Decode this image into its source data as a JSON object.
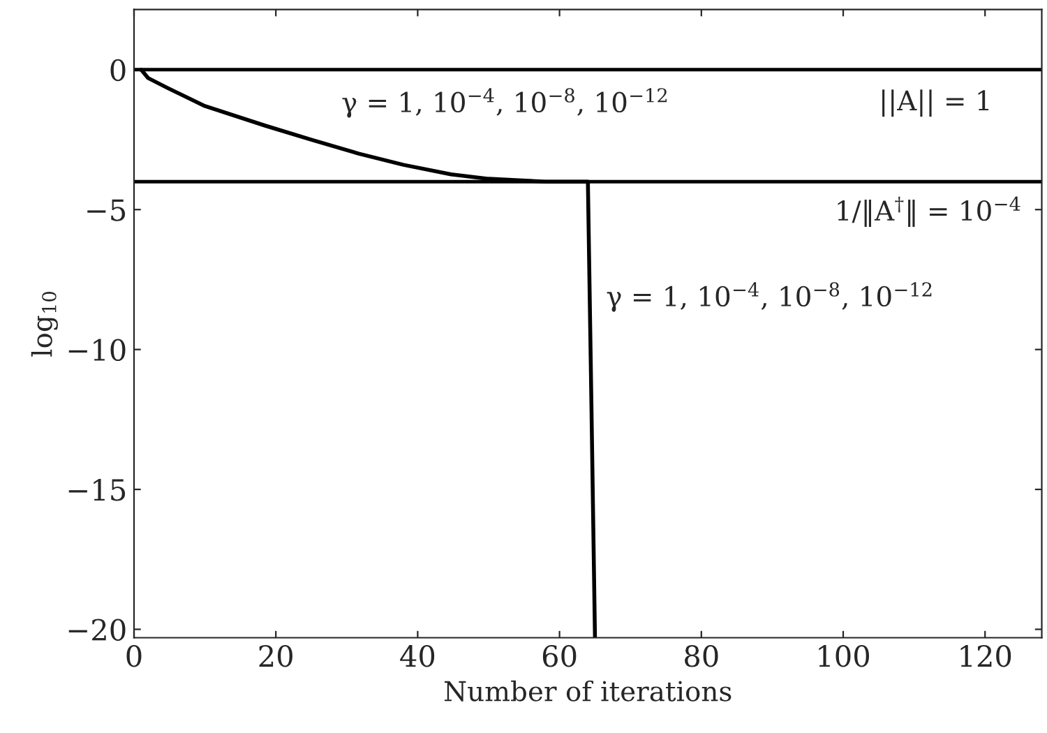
{
  "chart_data": {
    "type": "line",
    "xlabel": "Number of iterations",
    "ylabel": "log$_{10}$",
    "xlim": [
      0,
      128
    ],
    "ylim": [
      -20.3,
      2.15
    ],
    "xticks": [
      0,
      20,
      40,
      60,
      80,
      100,
      120
    ],
    "yticks": [
      0,
      -5,
      -10,
      -15,
      -20
    ],
    "series": [
      {
        "color": "#000000",
        "x": [
          1,
          2,
          4.7,
          10,
          18.5,
          25,
          31.7,
          38,
          44.7,
          50,
          58,
          64,
          64.5,
          65
        ],
        "values": [
          0,
          -0.3,
          -0.65,
          -1.3,
          -2.0,
          -2.5,
          -3.0,
          -3.4,
          -3.74,
          -3.9,
          -4.0,
          -4.0,
          -12,
          -20.3
        ]
      }
    ],
    "ref_lines": [
      {
        "axis": "y",
        "value": 0,
        "color": "#000000"
      },
      {
        "axis": "y",
        "value": -4,
        "color": "#000000"
      }
    ],
    "annotations": [
      "γ = 1, 10$^{−4}$, 10$^{−8}$, 10$^{−12}$",
      "||A|| = 1",
      "1/‖A$^{†}$‖ = 10$^{−4}$",
      "γ = 1, 10$^{−4}$, 10$^{−8}$, 10$^{−12}$"
    ],
    "grid": false,
    "legend": false,
    "marker": "none",
    "line_style": "solid"
  }
}
